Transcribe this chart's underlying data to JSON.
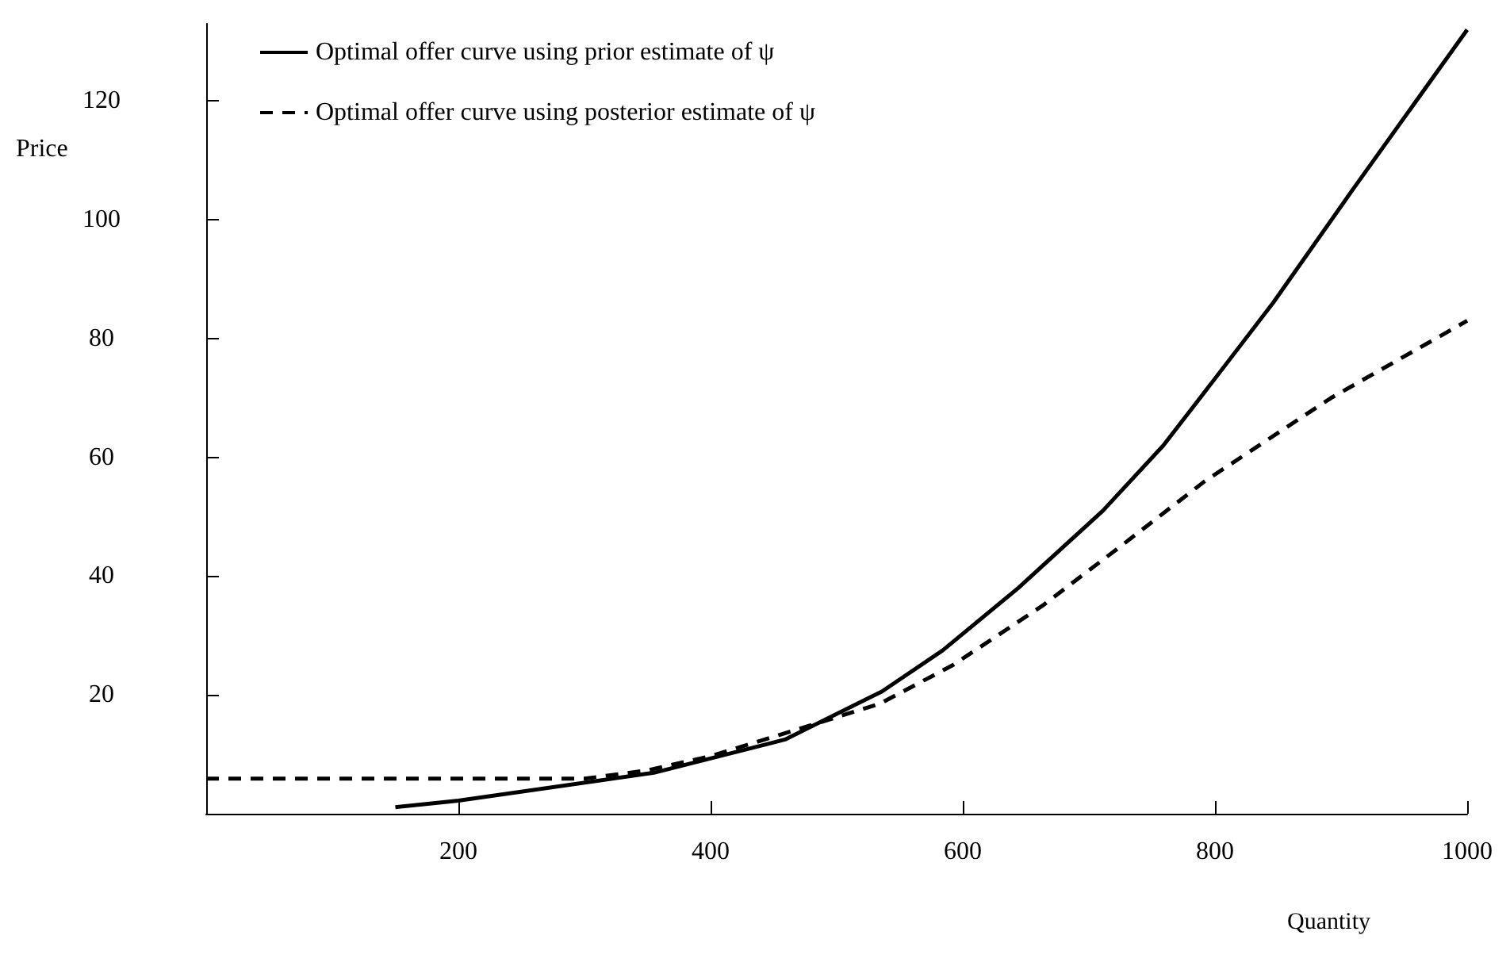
{
  "chart_data": {
    "type": "line",
    "xlabel": "Quantity",
    "ylabel": "Price",
    "xlim": [
      0,
      1000
    ],
    "ylim": [
      0,
      133
    ],
    "xticks": [
      200,
      400,
      600,
      800,
      1000
    ],
    "yticks": [
      20,
      40,
      60,
      80,
      100,
      120
    ],
    "grid": false,
    "legend": "top left",
    "marker": "none",
    "series": [
      {
        "name": "Optimal offer curve using prior estimate of ψ",
        "color": "#000000",
        "line_style": "solid",
        "x": [
          150,
          200,
          355,
          450,
          459,
          536,
          584,
          644,
          711,
          759,
          790,
          846,
          909,
          1000
        ],
        "values": [
          1.1,
          2.2,
          6.9,
          12,
          12.5,
          20.6,
          27.5,
          38,
          51,
          62,
          70.5,
          86,
          105,
          132
        ]
      },
      {
        "name": "Optimal offer curve using posterior estimate of ψ",
        "color": "#000000",
        "line_style": "dashed",
        "x": [
          0,
          300,
          350,
          400,
          475,
          534,
          592,
          663,
          725,
          792,
          892,
          1000
        ],
        "values": [
          5.9,
          5.9,
          7.3,
          9.7,
          14.6,
          18.5,
          25,
          35,
          45,
          56,
          70,
          83
        ]
      }
    ]
  }
}
